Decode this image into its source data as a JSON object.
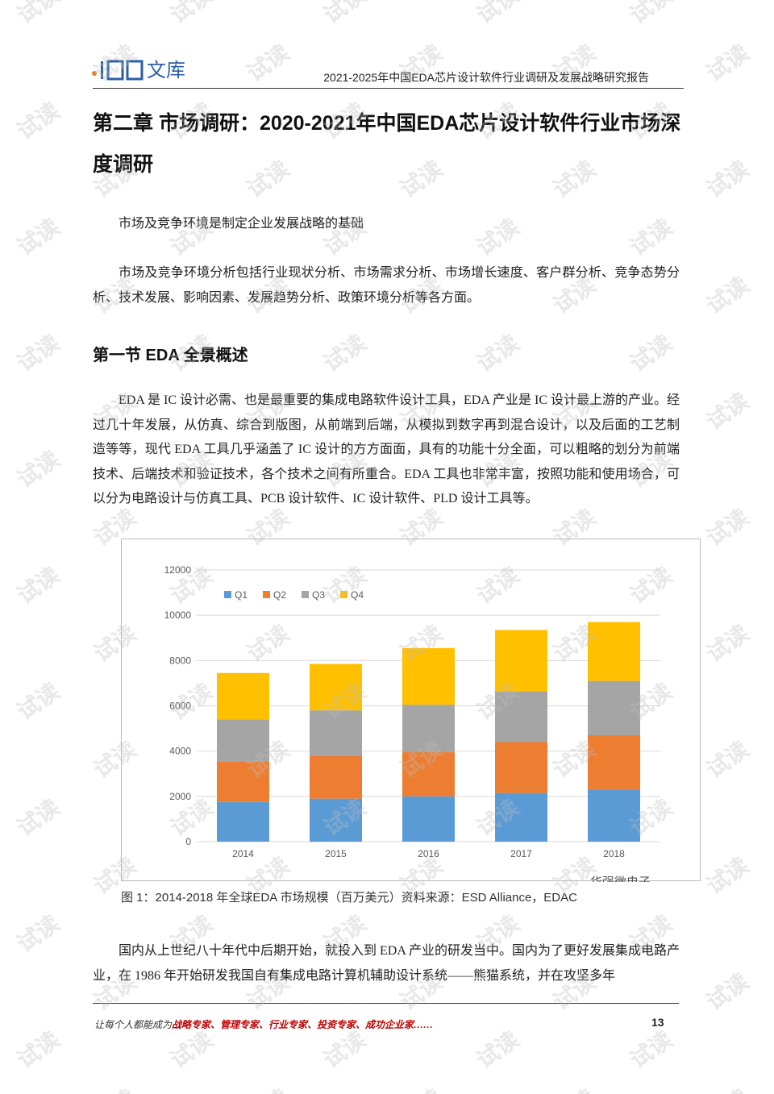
{
  "header": {
    "logo_text": "文库",
    "title": "2021-2025年中国EDA芯片设计软件行业调研及发展战略研究报告"
  },
  "chapter_title": "第二章  市场调研：2020-2021年中国EDA芯片设计软件行业市场深度调研",
  "paragraphs": [
    "市场及竞争环境是制定企业发展战略的基础",
    "市场及竞争环境分析包括行业现状分析、市场需求分析、市场增长速度、客户群分析、竞争态势分析、技术发展、影响因素、发展趋势分析、政策环境分析等各方面。"
  ],
  "section_title": "第一节  EDA 全景概述",
  "section_paragraphs": [
    "EDA 是 IC 设计必需、也是最重要的集成电路软件设计工具，EDA 产业是 IC 设计最上游的产业。经过几十年发展，从仿真、综合到版图，从前端到后端，从模拟到数字再到混合设计，以及后面的工艺制造等等，现代 EDA 工具几乎涵盖了 IC 设计的方方面面，具有的功能十分全面，可以粗略的划分为前端技术、后端技术和验证技术，各个技术之间有所重合。EDA 工具也非常丰富，按照功能和使用场合，可以分为电路设计与仿真工具、PCB 设计软件、IC 设计软件、PLD 设计工具等。",
    "国内从上世纪八十年代中后期开始，就投入到 EDA 产业的研发当中。国内为了更好发展集成电路产业，在 1986 年开始研发我国自有集成电路计算机辅助设计系统——熊猫系统，并在攻坚多年"
  ],
  "chart_data": {
    "type": "stacked_bar",
    "categories": [
      "2014",
      "2015",
      "2016",
      "2017",
      "2018"
    ],
    "series": [
      {
        "name": "Q1",
        "color": "#5b9bd5",
        "values": [
          1750,
          1900,
          2000,
          2150,
          2300
        ]
      },
      {
        "name": "Q2",
        "color": "#ed7d31",
        "values": [
          1800,
          1900,
          1950,
          2250,
          2400
        ]
      },
      {
        "name": "Q3",
        "color": "#a5a5a5",
        "values": [
          1850,
          2000,
          2100,
          2250,
          2400
        ]
      },
      {
        "name": "Q4",
        "color": "#ffc000",
        "values": [
          2050,
          2050,
          2500,
          2700,
          2600
        ]
      }
    ],
    "ylim": [
      0,
      12000
    ],
    "yticks": [
      0,
      2000,
      4000,
      6000,
      8000,
      10000,
      12000
    ],
    "grid": true,
    "legend": "top-left"
  },
  "figure_caption": "图 1：2014-2018 年全球EDA 市场规模（百万美元）资料来源：ESD Alliance，EDAC",
  "image_watermark": "华强微电子",
  "watermark": "试读",
  "footer": {
    "lead": "让每个人都能成为",
    "highlight": "战略专家、管理专家、行业专家、投资专家、成功企业家……",
    "page_number": "13"
  }
}
